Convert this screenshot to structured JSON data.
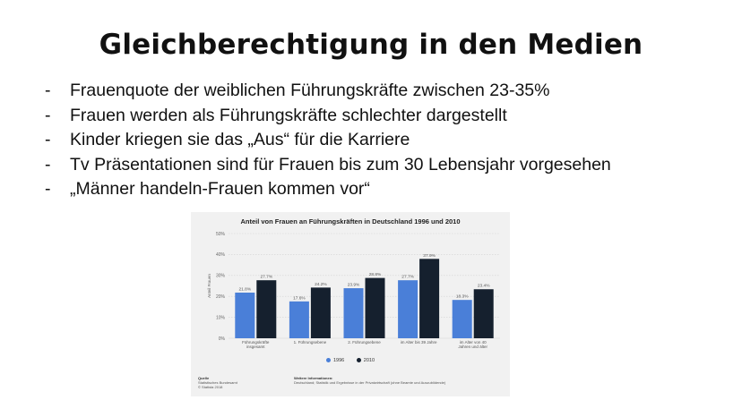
{
  "slide": {
    "title": "Gleichberechtigung in den Medien",
    "bullets": [
      "Frauenquote der weiblichen Führungskräfte zwischen 23-35%",
      "Frauen werden als Führungskräfte schlechter dargestellt",
      "Kinder kriegen sie das „Aus“ für die Karriere",
      "Tv Präsentationen sind für Frauen bis zum 30 Lebensjahr vorgesehen",
      "„Männer handeln-Frauen kommen vor“"
    ],
    "bullet_marker": "-"
  },
  "chart_data": {
    "type": "bar",
    "title": "Anteil von Frauen an Führungskräften in Deutschland 1996 und 2010",
    "ylabel": "Anteil Frauen",
    "xlabel": "",
    "ylim": [
      0,
      50
    ],
    "yticks": [
      "0%",
      "10%",
      "20%",
      "30%",
      "40%",
      "50%"
    ],
    "categories": [
      [
        "Führungskräfte",
        "insgesamt"
      ],
      [
        "1. Führungsebene"
      ],
      [
        "2. Führungsebene"
      ],
      [
        "im Alter bis 39 Jahre"
      ],
      [
        "im Alter von 40",
        "Jahren und älter"
      ]
    ],
    "series": [
      {
        "name": "1996",
        "color": "#4a7fd8",
        "values": [
          21.8,
          17.6,
          23.9,
          27.7,
          18.3
        ],
        "labels": [
          "21.8%",
          "17.6%",
          "23.9%",
          "27.7%",
          "18.3%"
        ]
      },
      {
        "name": "2010",
        "color": "#15202e",
        "values": [
          27.7,
          24.2,
          28.8,
          37.9,
          23.4
        ],
        "labels": [
          "27.7%",
          "24.2%",
          "28.8%",
          "37.9%",
          "23.4%"
        ]
      }
    ],
    "grid": true,
    "legend_position": "bottom",
    "source": {
      "left_head": "Quelle",
      "left_lines": [
        "Statistisches Bundesamt",
        "© Statista 2018"
      ],
      "right_head": "Weitere Informationen:",
      "right_lines": [
        "Deutschland; Statistik und Ergebnisse in der Privatwirtschaft (ohne Beamte und Auszubildende)"
      ]
    }
  }
}
